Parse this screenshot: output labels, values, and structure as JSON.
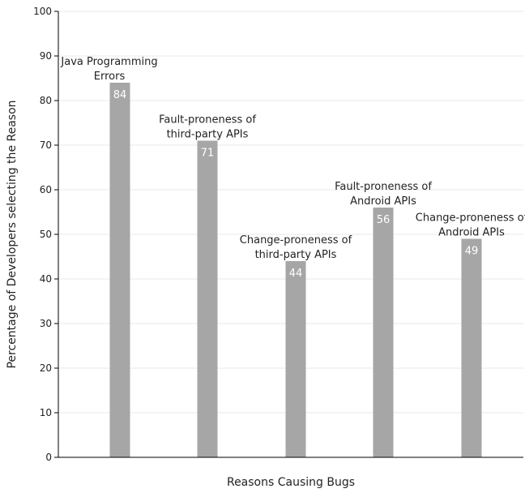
{
  "chart_data": {
    "type": "bar",
    "title": "",
    "xlabel": "Reasons Causing Bugs",
    "ylabel": "Percentage of Developers selecting the Reason",
    "ylim": [
      0,
      100
    ],
    "yticks": [
      0,
      10,
      20,
      30,
      40,
      50,
      60,
      70,
      80,
      90,
      100
    ],
    "grid": true,
    "legend": "none",
    "categories": [
      [
        "Java Programming",
        "Errors"
      ],
      [
        "Fault-proneness of",
        "third-party APIs"
      ],
      [
        "Change-proneness of",
        "third-party APIs"
      ],
      [
        "Fault-proneness of",
        "Android APIs"
      ],
      [
        "Change-proneness of",
        "Android APIs"
      ]
    ],
    "values": [
      84,
      71,
      44,
      56,
      49
    ],
    "data_labels": [
      "84",
      "71",
      "44",
      "56",
      "49"
    ],
    "colors": {
      "bar": "#a6a6a6",
      "value_label": "#ffffff",
      "text": "#222222",
      "axis": "#000000",
      "grid": "#e8e8e8"
    }
  }
}
